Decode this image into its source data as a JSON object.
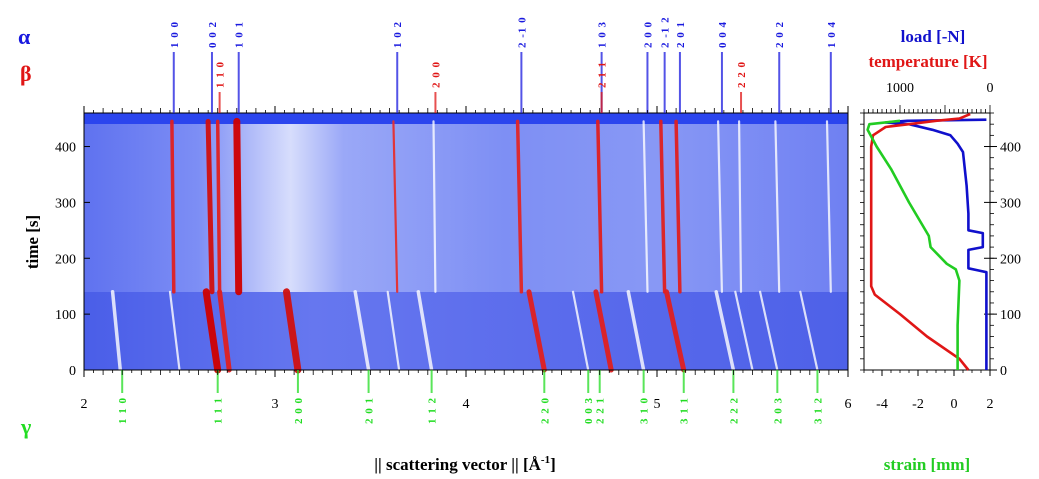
{
  "colors": {
    "alpha": "#1a1adf",
    "beta": "#e01616",
    "gamma": "#22dd22",
    "load": "#1010cc",
    "temperature": "#e01616",
    "strain": "#22cc22",
    "map_bg": "#6f80f4",
    "map_light": "#c9d1fb"
  },
  "labels": {
    "alpha_symbol": "α",
    "beta_symbol": "β",
    "gamma_symbol": "γ",
    "xlabel_main": "|| scattering vector || [Å",
    "xlabel_sup": "-1",
    "xlabel_end": "]",
    "ylabel": "time [s]",
    "load_label": "load [-N]",
    "temperature_label": "temperature [K]",
    "strain_label": "strain [mm]"
  },
  "chart_data": [
    {
      "type": "heatmap",
      "title": "",
      "xlabel": "|| scattering vector || [Å-1]",
      "ylabel": "time [s]",
      "xlim": [
        2,
        6
      ],
      "ylim": [
        0,
        460
      ],
      "x_ticks": [
        2,
        3,
        4,
        5,
        6
      ],
      "y_ticks": [
        0,
        100,
        200,
        300,
        400
      ],
      "alpha_reflections": [
        {
          "hkl": "1 0 0",
          "q": 2.47
        },
        {
          "hkl": "0 0 2",
          "q": 2.67
        },
        {
          "hkl": "1 0 1",
          "q": 2.81
        },
        {
          "hkl": "1 0 2",
          "q": 3.64
        },
        {
          "hkl": "2 -1 0",
          "q": 4.29
        },
        {
          "hkl": "1 0 3",
          "q": 4.71
        },
        {
          "hkl": "2 0 0",
          "q": 4.95
        },
        {
          "hkl": "2 -1 2",
          "q": 5.04
        },
        {
          "hkl": "2 0 1",
          "q": 5.12
        },
        {
          "hkl": "0 0 4",
          "q": 5.34
        },
        {
          "hkl": "2 0 2",
          "q": 5.64
        },
        {
          "hkl": "1 0 4",
          "q": 5.91
        }
      ],
      "beta_reflections": [
        {
          "hkl": "1 1 0",
          "q": 2.71
        },
        {
          "hkl": "2 0 0",
          "q": 3.84
        },
        {
          "hkl": "2 1 1",
          "q": 4.71
        },
        {
          "hkl": "2 2 0",
          "q": 5.44
        }
      ],
      "gamma_reflections": [
        {
          "hkl": "1 1 0",
          "q": 2.2
        },
        {
          "hkl": "1 1 1",
          "q": 2.7
        },
        {
          "hkl": "2 0 0",
          "q": 3.12
        },
        {
          "hkl": "2 0 1",
          "q": 3.49
        },
        {
          "hkl": "1 1 2",
          "q": 3.82
        },
        {
          "hkl": "2 2 0",
          "q": 4.41
        },
        {
          "hkl": "0 0 3",
          "q": 4.64
        },
        {
          "hkl": "2 2 1",
          "q": 4.7
        },
        {
          "hkl": "3 1 0",
          "q": 4.93
        },
        {
          "hkl": "3 1 1",
          "q": 5.14
        },
        {
          "hkl": "2 2 2",
          "q": 5.4
        },
        {
          "hkl": "2 0 3",
          "q": 5.63
        },
        {
          "hkl": "3 1 2",
          "q": 5.84
        }
      ],
      "traces": [
        {
          "phase": "alpha",
          "q_start": 2.47,
          "q_end": 2.46,
          "t_from": 140,
          "t_to": 445,
          "color": "#e02020",
          "intensity": "medium"
        },
        {
          "phase": "alpha",
          "q_start": 2.67,
          "q_end": 2.65,
          "t_from": 140,
          "t_to": 445,
          "color": "#d01010",
          "intensity": "strong"
        },
        {
          "phase": "beta",
          "q_start": 2.71,
          "q_end": 2.7,
          "t_from": 140,
          "t_to": 445,
          "color": "#e02020",
          "intensity": "medium"
        },
        {
          "phase": "alpha",
          "q_start": 2.81,
          "q_end": 2.8,
          "t_from": 140,
          "t_to": 445,
          "color": "#d00000",
          "intensity": "very strong"
        },
        {
          "phase": "alpha",
          "q_start": 3.64,
          "q_end": 3.62,
          "t_from": 140,
          "t_to": 445,
          "color": "#e63030",
          "intensity": "weak"
        },
        {
          "phase": "beta",
          "q_start": 3.84,
          "q_end": 3.83,
          "t_from": 140,
          "t_to": 445,
          "color": "#ffffff",
          "intensity": "weak"
        },
        {
          "phase": "alpha",
          "q_start": 4.29,
          "q_end": 4.27,
          "t_from": 140,
          "t_to": 445,
          "color": "#e22626",
          "intensity": "medium"
        },
        {
          "phase": "beta",
          "q_start": 4.71,
          "q_end": 4.69,
          "t_from": 140,
          "t_to": 445,
          "color": "#e02020",
          "intensity": "medium"
        },
        {
          "phase": "alpha",
          "q_start": 4.95,
          "q_end": 4.93,
          "t_from": 140,
          "t_to": 445,
          "color": "#ffffff",
          "intensity": "weak"
        },
        {
          "phase": "alpha",
          "q_start": 5.04,
          "q_end": 5.02,
          "t_from": 140,
          "t_to": 445,
          "color": "#e02020",
          "intensity": "medium"
        },
        {
          "phase": "alpha",
          "q_start": 5.12,
          "q_end": 5.1,
          "t_from": 140,
          "t_to": 445,
          "color": "#e02020",
          "intensity": "medium"
        },
        {
          "phase": "alpha",
          "q_start": 5.34,
          "q_end": 5.32,
          "t_from": 140,
          "t_to": 445,
          "color": "#ffffff",
          "intensity": "weak"
        },
        {
          "phase": "beta",
          "q_start": 5.44,
          "q_end": 5.43,
          "t_from": 140,
          "t_to": 445,
          "color": "#ffffff",
          "intensity": "weak"
        },
        {
          "phase": "alpha",
          "q_start": 5.64,
          "q_end": 5.62,
          "t_from": 140,
          "t_to": 445,
          "color": "#ffffff",
          "intensity": "weak"
        },
        {
          "phase": "alpha",
          "q_start": 5.91,
          "q_end": 5.89,
          "t_from": 140,
          "t_to": 445,
          "color": "#ffffff",
          "intensity": "weak"
        },
        {
          "phase": "gamma",
          "q_start": 2.19,
          "q_end": 2.15,
          "t_from": 0,
          "t_to": 140,
          "color": "#ffffff",
          "intensity": "medium"
        },
        {
          "phase": "gamma",
          "q_start": 2.5,
          "q_end": 2.45,
          "t_from": 0,
          "t_to": 140,
          "color": "#ffffff",
          "intensity": "weak"
        },
        {
          "phase": "gamma",
          "q_start": 2.7,
          "q_end": 2.64,
          "t_from": 0,
          "t_to": 140,
          "color": "#d00000",
          "intensity": "very strong"
        },
        {
          "phase": "gamma",
          "q_start": 2.76,
          "q_end": 2.71,
          "t_from": 0,
          "t_to": 140,
          "color": "#e02020",
          "intensity": "strong"
        },
        {
          "phase": "gamma",
          "q_start": 3.12,
          "q_end": 3.06,
          "t_from": 0,
          "t_to": 140,
          "color": "#d01010",
          "intensity": "very strong"
        },
        {
          "phase": "gamma",
          "q_start": 3.49,
          "q_end": 3.42,
          "t_from": 0,
          "t_to": 140,
          "color": "#ffffff",
          "intensity": "medium"
        },
        {
          "phase": "gamma",
          "q_start": 3.65,
          "q_end": 3.59,
          "t_from": 0,
          "t_to": 140,
          "color": "#ffffff",
          "intensity": "weak"
        },
        {
          "phase": "gamma",
          "q_start": 3.82,
          "q_end": 3.75,
          "t_from": 0,
          "t_to": 140,
          "color": "#ffffff",
          "intensity": "medium"
        },
        {
          "phase": "gamma",
          "q_start": 4.41,
          "q_end": 4.33,
          "t_from": 0,
          "t_to": 140,
          "color": "#e02020",
          "intensity": "strong"
        },
        {
          "phase": "gamma",
          "q_start": 4.64,
          "q_end": 4.56,
          "t_from": 0,
          "t_to": 140,
          "color": "#ffffff",
          "intensity": "weak"
        },
        {
          "phase": "gamma",
          "q_start": 4.76,
          "q_end": 4.68,
          "t_from": 0,
          "t_to": 140,
          "color": "#e02020",
          "intensity": "strong"
        },
        {
          "phase": "gamma",
          "q_start": 4.93,
          "q_end": 4.85,
          "t_from": 0,
          "t_to": 140,
          "color": "#ffffff",
          "intensity": "medium"
        },
        {
          "phase": "gamma",
          "q_start": 5.14,
          "q_end": 5.05,
          "t_from": 0,
          "t_to": 140,
          "color": "#e02020",
          "intensity": "strong"
        },
        {
          "phase": "gamma",
          "q_start": 5.4,
          "q_end": 5.31,
          "t_from": 0,
          "t_to": 140,
          "color": "#ffffff",
          "intensity": "medium"
        },
        {
          "phase": "gamma",
          "q_start": 5.5,
          "q_end": 5.41,
          "t_from": 0,
          "t_to": 140,
          "color": "#ffffff",
          "intensity": "weak"
        },
        {
          "phase": "gamma",
          "q_start": 5.63,
          "q_end": 5.54,
          "t_from": 0,
          "t_to": 140,
          "color": "#ffffff",
          "intensity": "weak"
        },
        {
          "phase": "gamma",
          "q_start": 5.84,
          "q_end": 5.75,
          "t_from": 0,
          "t_to": 140,
          "color": "#ffffff",
          "intensity": "weak"
        }
      ]
    },
    {
      "type": "line",
      "title": "",
      "ylabel": "",
      "ylim": [
        0,
        460
      ],
      "y_ticks": [
        0,
        100,
        200,
        300,
        400
      ],
      "x_bottom": {
        "label": "strain [mm]",
        "lim": [
          -5,
          2
        ],
        "ticks": [
          -4,
          -2,
          0,
          2
        ]
      },
      "x_top": {
        "label": "temperature [K]",
        "lim": [
          1400,
          0
        ],
        "ticks": [
          1000,
          0
        ]
      },
      "x_top_secondary_label": "load [-N]",
      "series": [
        {
          "name": "load [-N]",
          "axis": "bottom",
          "color": "#1010cc",
          "points": [
            [
              1.8,
              0
            ],
            [
              1.8,
              175
            ],
            [
              1.4,
              178
            ],
            [
              0.8,
              182
            ],
            [
              0.8,
              215
            ],
            [
              1.6,
              220
            ],
            [
              1.6,
              245
            ],
            [
              0.8,
              250
            ],
            [
              0.8,
              280
            ],
            [
              0.7,
              330
            ],
            [
              0.5,
              390
            ],
            [
              0.2,
              405
            ],
            [
              -0.2,
              420
            ],
            [
              -1.2,
              430
            ],
            [
              -2.5,
              440
            ],
            [
              -3.8,
              443
            ],
            [
              -2.6,
              446
            ],
            [
              1.8,
              448
            ]
          ]
        },
        {
          "name": "temperature [K]",
          "axis": "bottom",
          "color": "#e01616",
          "points": [
            [
              0.8,
              0
            ],
            [
              0.3,
              20
            ],
            [
              -1.5,
              60
            ],
            [
              -3.0,
              100
            ],
            [
              -4.4,
              135
            ],
            [
              -4.6,
              150
            ],
            [
              -4.6,
              400
            ],
            [
              -4.5,
              420
            ],
            [
              -3.8,
              435
            ],
            [
              -2.5,
              440
            ],
            [
              -1.0,
              446
            ],
            [
              0.3,
              450
            ],
            [
              0.9,
              458
            ]
          ]
        },
        {
          "name": "strain [mm]",
          "axis": "bottom",
          "color": "#22cc22",
          "points": [
            [
              0.2,
              0
            ],
            [
              0.2,
              80
            ],
            [
              0.3,
              160
            ],
            [
              0.1,
              180
            ],
            [
              -0.4,
              190
            ],
            [
              -1.3,
              220
            ],
            [
              -1.4,
              240
            ],
            [
              -2.5,
              300
            ],
            [
              -3.5,
              360
            ],
            [
              -4.3,
              400
            ],
            [
              -4.8,
              430
            ],
            [
              -4.7,
              440
            ],
            [
              -3.0,
              446
            ]
          ]
        }
      ]
    }
  ]
}
